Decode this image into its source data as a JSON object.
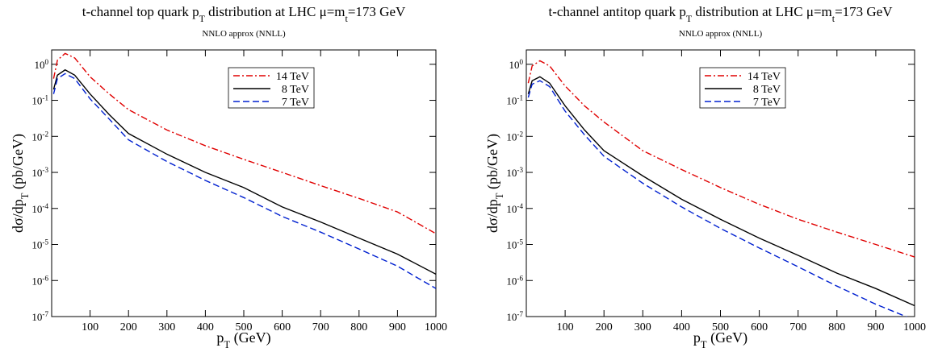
{
  "chart_data": [
    {
      "type": "line",
      "title": "t-channel top quark p_T distribution at LHC   μ=m_t=173 GeV",
      "subtitle": "NNLO approx (NNLL)",
      "ylabel": "dσ/dp_T (pb/GeV)",
      "xlabel": "p_T (GeV)",
      "log_y": true,
      "xlim": [
        0,
        1000
      ],
      "ylim": [
        1e-07,
        2.5
      ],
      "xticks": [
        100,
        200,
        300,
        400,
        500,
        600,
        700,
        800,
        900,
        1000
      ],
      "yticks": [
        {
          "value": 1e-07,
          "label": "10^{-7}"
        },
        {
          "value": 1e-06,
          "label": "10^{-6}"
        },
        {
          "value": 1e-05,
          "label": "10^{-5}"
        },
        {
          "value": 0.0001,
          "label": "10^{-4}"
        },
        {
          "value": 0.001,
          "label": "10^{-3}"
        },
        {
          "value": 0.01,
          "label": "10^{-2}"
        },
        {
          "value": 0.1,
          "label": "10^{-1}"
        },
        {
          "value": 1,
          "label": "10^{0}"
        }
      ],
      "x": [
        5,
        15,
        35,
        60,
        100,
        150,
        200,
        300,
        400,
        500,
        600,
        700,
        800,
        900,
        1000
      ],
      "series": [
        {
          "name": "14 TeV",
          "color": "#e00000",
          "dash": "8,3,2,3",
          "values": [
            0.4,
            1.3,
            2.0,
            1.5,
            0.45,
            0.15,
            0.055,
            0.015,
            0.0055,
            0.0023,
            0.001,
            0.00043,
            0.00019,
            8e-05,
            2e-05
          ]
        },
        {
          "name": "8 TeV",
          "color": "#000000",
          "dash": "none",
          "values": [
            0.2,
            0.5,
            0.7,
            0.5,
            0.15,
            0.04,
            0.012,
            0.0032,
            0.001,
            0.00038,
            0.00011,
            4.2e-05,
            1.5e-05,
            5.4e-06,
            1.5e-06
          ]
        },
        {
          "name": "7 TeV",
          "color": "#0020d0",
          "dash": "8,4",
          "values": [
            0.15,
            0.4,
            0.55,
            0.4,
            0.11,
            0.03,
            0.008,
            0.002,
            0.0006,
            0.0002,
            6e-05,
            2.2e-05,
            7.5e-06,
            2.5e-06,
            6e-07
          ]
        }
      ]
    },
    {
      "type": "line",
      "title": "t-channel antitop quark p_T distribution at LHC   μ=m_t=173 GeV",
      "subtitle": "NNLO approx (NNLL)",
      "ylabel": "dσ/dp_T (pb/GeV)",
      "xlabel": "p_T (GeV)",
      "log_y": true,
      "xlim": [
        0,
        1000
      ],
      "ylim": [
        1e-07,
        2.5
      ],
      "xticks": [
        100,
        200,
        300,
        400,
        500,
        600,
        700,
        800,
        900,
        1000
      ],
      "yticks": [
        {
          "value": 1e-07,
          "label": "10^{-7}"
        },
        {
          "value": 1e-06,
          "label": "10^{-6}"
        },
        {
          "value": 1e-05,
          "label": "10^{-5}"
        },
        {
          "value": 0.0001,
          "label": "10^{-4}"
        },
        {
          "value": 0.001,
          "label": "10^{-3}"
        },
        {
          "value": 0.01,
          "label": "10^{-2}"
        },
        {
          "value": 0.1,
          "label": "10^{-1}"
        },
        {
          "value": 1,
          "label": "10^{0}"
        }
      ],
      "x": [
        5,
        15,
        35,
        60,
        100,
        150,
        200,
        300,
        400,
        500,
        600,
        700,
        800,
        900,
        1000
      ],
      "series": [
        {
          "name": "14 TeV",
          "color": "#e00000",
          "dash": "8,3,2,3",
          "values": [
            0.3,
            0.9,
            1.25,
            0.9,
            0.25,
            0.07,
            0.025,
            0.004,
            0.0012,
            0.00038,
            0.00013,
            5e-05,
            2.2e-05,
            1e-05,
            4.5e-06
          ]
        },
        {
          "name": "8 TeV",
          "color": "#000000",
          "dash": "none",
          "values": [
            0.15,
            0.35,
            0.45,
            0.3,
            0.07,
            0.015,
            0.004,
            0.0008,
            0.00018,
            5e-05,
            1.5e-05,
            5e-06,
            1.6e-06,
            6e-07,
            2e-07
          ]
        },
        {
          "name": "7 TeV",
          "color": "#0020d0",
          "dash": "8,4",
          "values": [
            0.12,
            0.28,
            0.35,
            0.24,
            0.05,
            0.011,
            0.0028,
            0.0005,
            0.00011,
            2.8e-05,
            8e-06,
            2.4e-06,
            7e-07,
            2.2e-07,
            8e-08
          ]
        }
      ]
    }
  ]
}
